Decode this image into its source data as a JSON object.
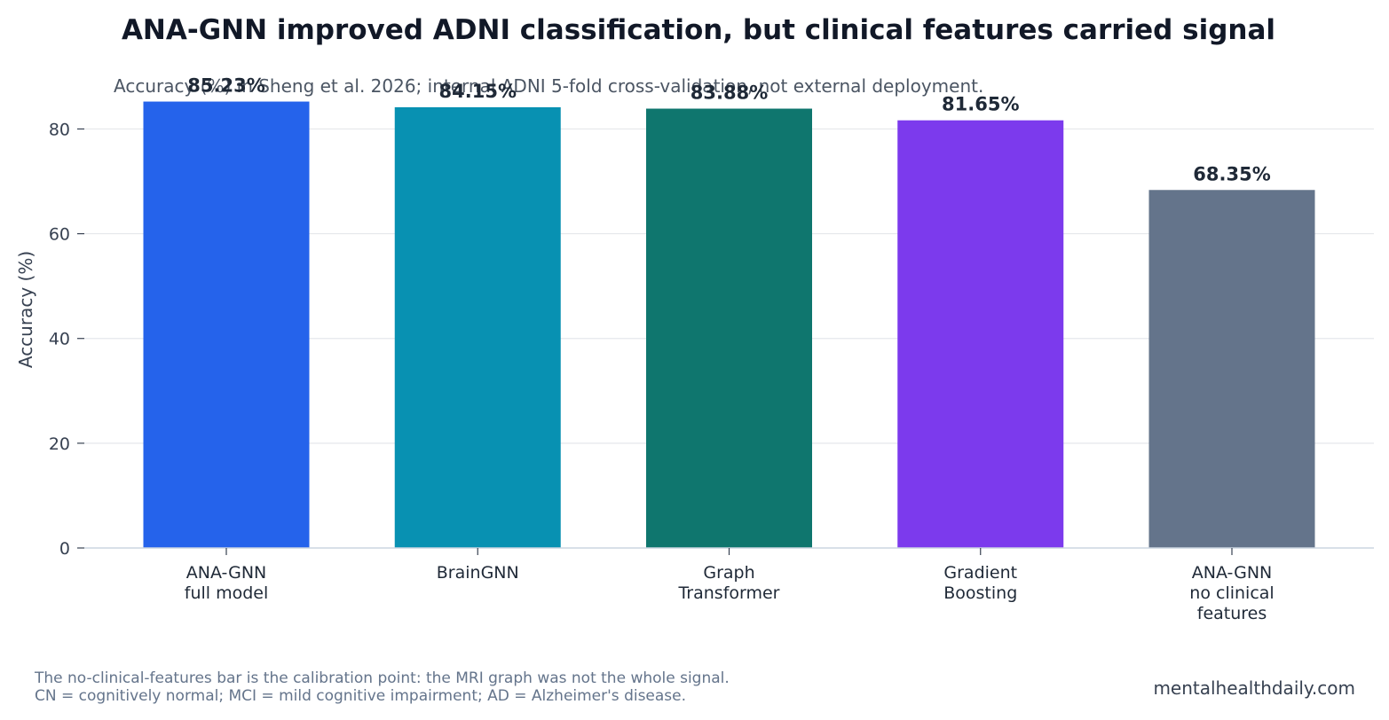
{
  "chart_data": {
    "type": "bar",
    "title": "ANA-GNN improved ADNI classification, but clinical features carried signal",
    "subtitle": "Accuracy (%) in Sheng et al. 2026; internal ADNI 5-fold cross-validation, not external deployment.",
    "ylabel": "Accuracy (%)",
    "xlabel": "",
    "ylim": [
      0,
      86
    ],
    "yticks": [
      "0",
      "20",
      "40",
      "60",
      "80"
    ],
    "grid": true,
    "categories": [
      [
        "ANA-GNN",
        "full model"
      ],
      [
        "BrainGNN"
      ],
      [
        "Graph",
        "Transformer"
      ],
      [
        "Gradient",
        "Boosting"
      ],
      [
        "ANA-GNN",
        "no clinical",
        "features"
      ]
    ],
    "values": [
      85.23,
      84.15,
      83.88,
      81.65,
      68.35
    ],
    "value_labels": [
      "85.23%",
      "84.15%",
      "83.88%",
      "81.65%",
      "68.35%"
    ],
    "colors": [
      "#2563eb",
      "#0891b2",
      "#0f766e",
      "#7c3aed",
      "#64748b"
    ]
  },
  "footnotes": [
    "The no-clinical-features bar is the calibration point: the MRI graph was not the whole signal.",
    "CN = cognitively normal; MCI = mild cognitive impairment; AD = Alzheimer's disease."
  ],
  "source": "mentalhealthdaily.com"
}
